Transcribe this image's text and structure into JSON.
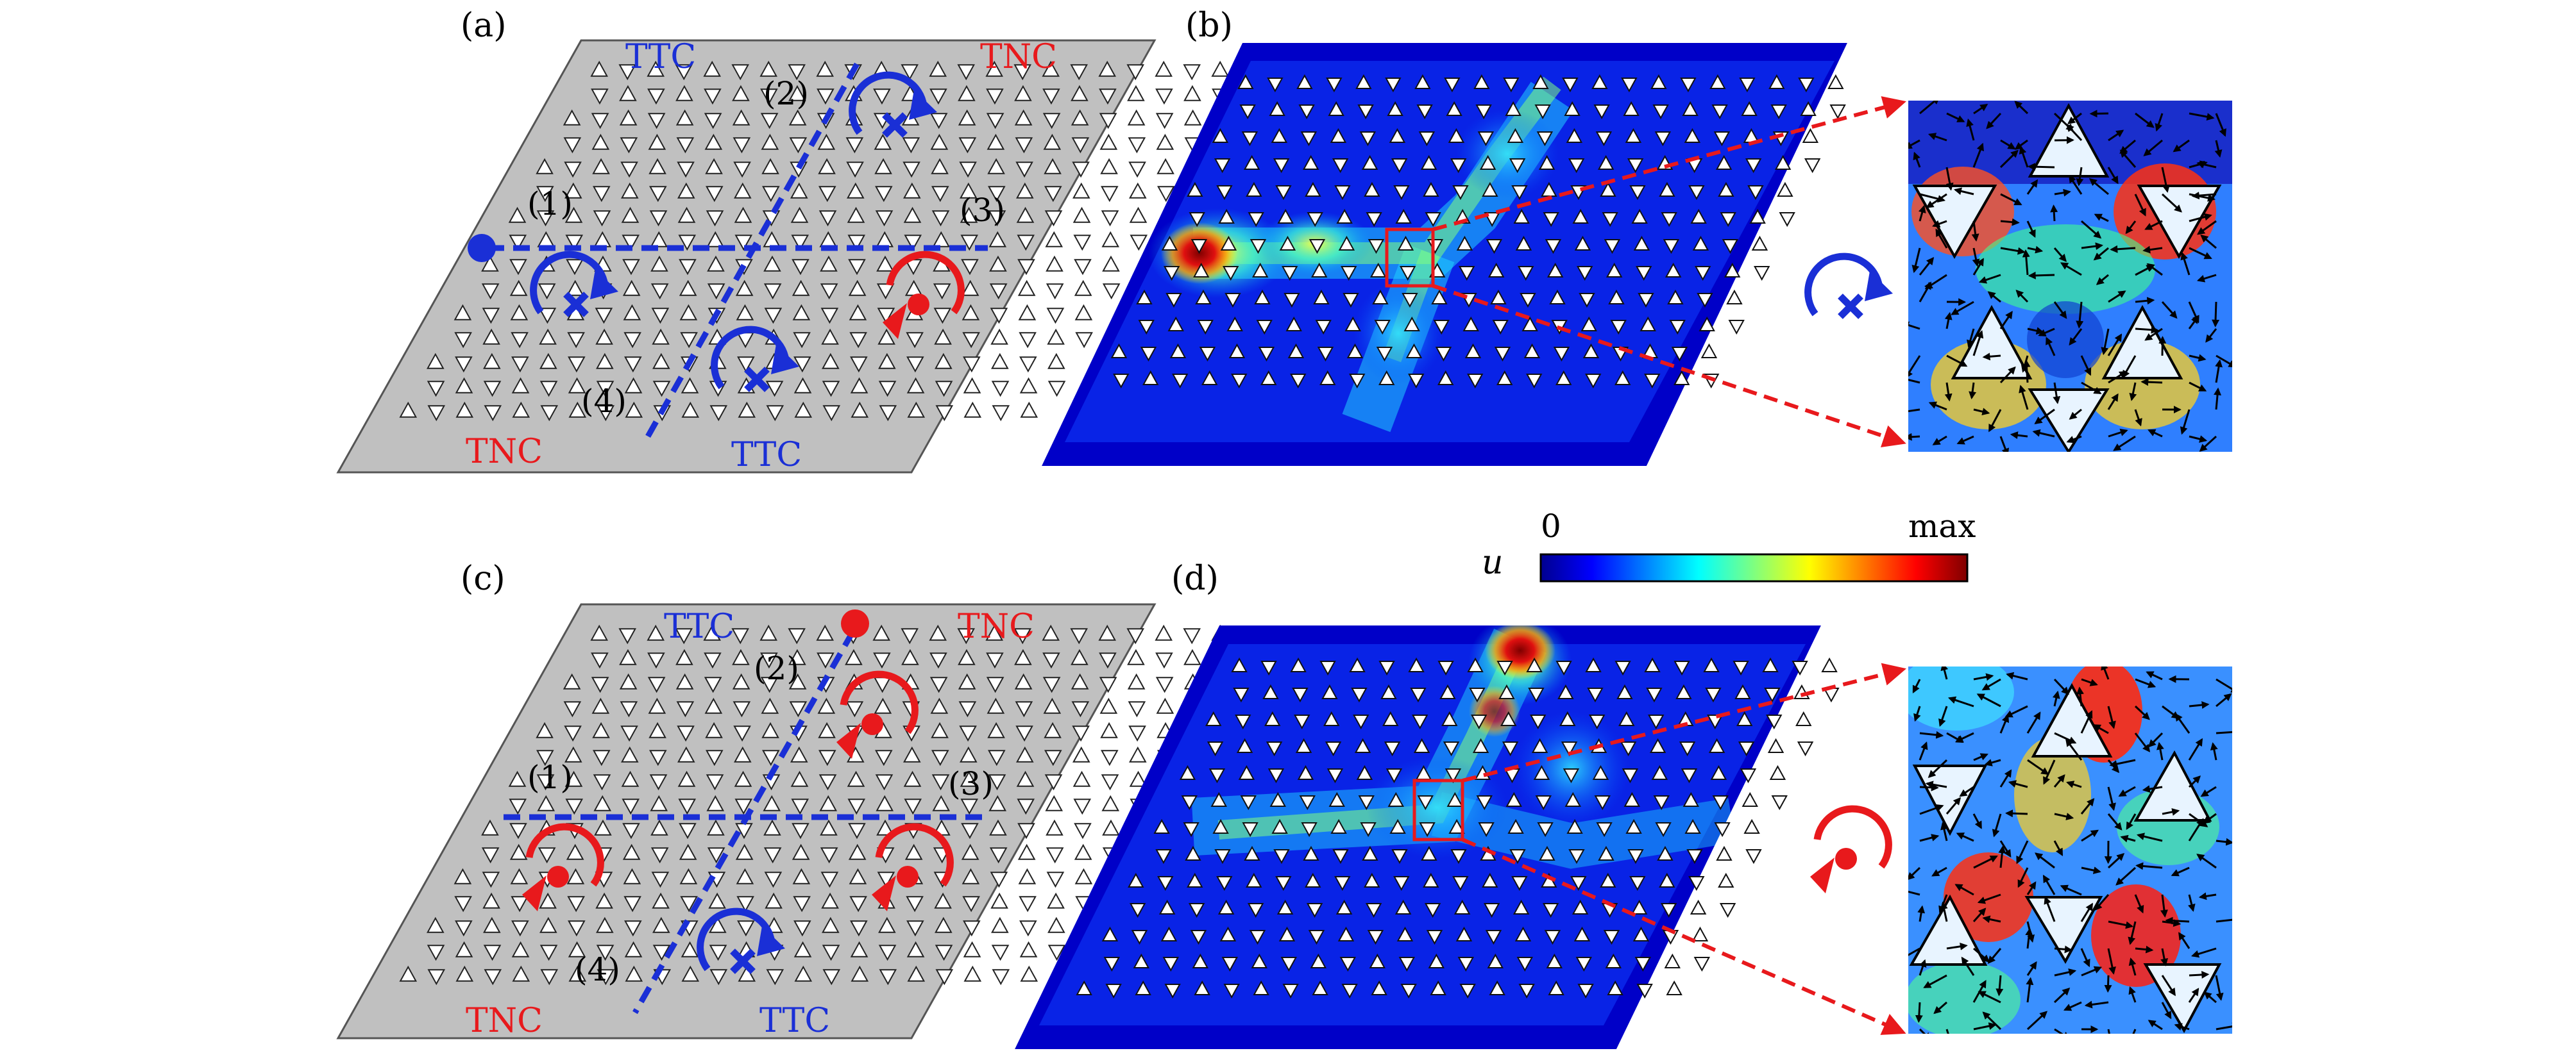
{
  "panels": {
    "a": {
      "label": "(a)",
      "top_left": "TTC",
      "top_right": "TNC",
      "bottom_left": "TNC",
      "bottom_right": "TTC",
      "path_labels": [
        "(1)",
        "(2)",
        "(3)",
        "(4)"
      ]
    },
    "b": {
      "label": "(b)"
    },
    "c": {
      "label": "(c)",
      "top_left": "TTC",
      "top_right": "TNC",
      "bottom_left": "TNC",
      "bottom_right": "TTC",
      "path_labels": [
        "(1)",
        "(2)",
        "(3)",
        "(4)"
      ]
    },
    "d": {
      "label": "(d)"
    }
  },
  "colorbar": {
    "symbol": "u",
    "min_label": "0",
    "max_label": "max"
  },
  "colors": {
    "plate": "#c0c0c0",
    "blue": "#1a2fd6",
    "red": "#e8191c",
    "field_low": "#00008f",
    "field_high": "#7f0000"
  }
}
